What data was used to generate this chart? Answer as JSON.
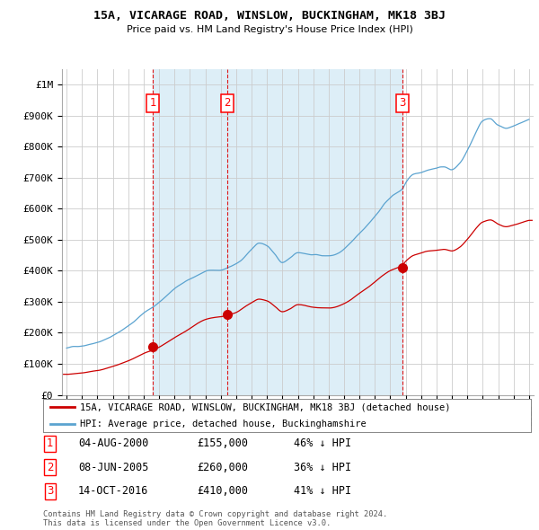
{
  "title": "15A, VICARAGE ROAD, WINSLOW, BUCKINGHAM, MK18 3BJ",
  "subtitle": "Price paid vs. HM Land Registry's House Price Index (HPI)",
  "ylim": [
    0,
    1050000
  ],
  "xlim": [
    1994.7,
    2025.3
  ],
  "yticks": [
    0,
    100000,
    200000,
    300000,
    400000,
    500000,
    600000,
    700000,
    800000,
    900000,
    1000000
  ],
  "ytick_labels": [
    "£0",
    "£100K",
    "£200K",
    "£300K",
    "£400K",
    "£500K",
    "£600K",
    "£700K",
    "£800K",
    "£900K",
    "£1M"
  ],
  "xticks": [
    1995,
    1996,
    1997,
    1998,
    1999,
    2000,
    2001,
    2002,
    2003,
    2004,
    2005,
    2006,
    2007,
    2008,
    2009,
    2010,
    2011,
    2012,
    2013,
    2014,
    2015,
    2016,
    2017,
    2018,
    2019,
    2020,
    2021,
    2022,
    2023,
    2024,
    2025
  ],
  "sales": [
    {
      "date_num": 2000.585,
      "price": 155000,
      "label": "1"
    },
    {
      "date_num": 2005.436,
      "price": 260000,
      "label": "2"
    },
    {
      "date_num": 2016.786,
      "price": 410000,
      "label": "3"
    }
  ],
  "vlines": [
    2000.585,
    2005.436,
    2016.786
  ],
  "hpi_color": "#5ba3d0",
  "sale_color": "#cc0000",
  "vline_color": "#dd0000",
  "shade_color": "#ddeef7",
  "legend_entries": [
    "15A, VICARAGE ROAD, WINSLOW, BUCKINGHAM, MK18 3BJ (detached house)",
    "HPI: Average price, detached house, Buckinghamshire"
  ],
  "table_data": [
    [
      "1",
      "04-AUG-2000",
      "£155,000",
      "46% ↓ HPI"
    ],
    [
      "2",
      "08-JUN-2005",
      "£260,000",
      "36% ↓ HPI"
    ],
    [
      "3",
      "14-OCT-2016",
      "£410,000",
      "41% ↓ HPI"
    ]
  ],
  "footer": "Contains HM Land Registry data © Crown copyright and database right 2024.\nThis data is licensed under the Open Government Licence v3.0.",
  "background_color": "#ffffff",
  "grid_color": "#cccccc"
}
